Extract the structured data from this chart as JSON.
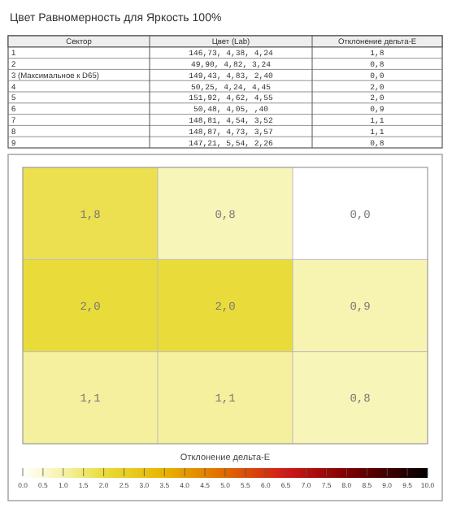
{
  "chart_data": [
    {
      "type": "other",
      "title": "Цвет Равномерность для Яркость 100%",
      "annotations": [
        "Сектор",
        "Цвет (Lab)",
        "Отклонение дельта-E",
        "1",
        "146,73,   4,38,   4,24",
        "1,8",
        "2",
        "49,90,   4,82,   3,24",
        "0,8",
        "3 (Максимальное к D65)",
        "149,43,   4,83,   2,40",
        "0,0",
        "4",
        "50,25,   4,24,   4,45",
        "2,0",
        "5",
        "151,92,   4,62,   4,55",
        "2,0",
        "6",
        "50,48,   4,05,   ,40",
        "0,9",
        "7",
        "148,81,   4,54,   3,52",
        "1,1",
        "8",
        "148,87,   4,73,   3,57",
        "1,1",
        "9",
        "147,21,   5,54,   2,26",
        "0,8"
      ]
    },
    {
      "type": "heatmap",
      "categories": [
        null,
        null,
        null
      ],
      "y_categories": [
        null,
        null,
        null
      ],
      "cells": [
        [
          1.8,
          0.8,
          0.0
        ],
        [
          2.0,
          2.0,
          0.9
        ],
        [
          1.1,
          1.1,
          0.8
        ]
      ],
      "cell_labels": [
        [
          "1,8",
          "0,8",
          "0,0"
        ],
        [
          "2,0",
          "2,0",
          "0,9"
        ],
        [
          "1,1",
          "1,1",
          "0,8"
        ]
      ],
      "grid": true,
      "clabel": "Отклонение дельта-E",
      "clim": [
        0,
        10
      ],
      "cticks": [
        {
          "value": 0,
          "label": "0.0"
        },
        {
          "value": 0.5,
          "label": "0.5"
        },
        {
          "value": 1,
          "label": "1.0"
        },
        {
          "value": 1.5,
          "label": "1.5"
        },
        {
          "value": 2,
          "label": "2.0"
        },
        {
          "value": 2.5,
          "label": "2.5"
        },
        {
          "value": 3,
          "label": "3.0"
        },
        {
          "value": 3.5,
          "label": "3.5"
        },
        {
          "value": 4,
          "label": "4.0"
        },
        {
          "value": 4.5,
          "label": "4.5"
        },
        {
          "value": 5,
          "label": "5.0"
        },
        {
          "value": 5.5,
          "label": "5.5"
        },
        {
          "value": 6,
          "label": "6.0"
        },
        {
          "value": 6.5,
          "label": "6.5"
        },
        {
          "value": 7,
          "label": "7.0"
        },
        {
          "value": 7.5,
          "label": "7.5"
        },
        {
          "value": 8,
          "label": "8.0"
        },
        {
          "value": 8.5,
          "label": "8.5"
        },
        {
          "value": 9,
          "label": "9.0"
        },
        {
          "value": 9.5,
          "label": "9.5"
        },
        {
          "value": 10,
          "label": "10.0"
        }
      ]
    }
  ]
}
